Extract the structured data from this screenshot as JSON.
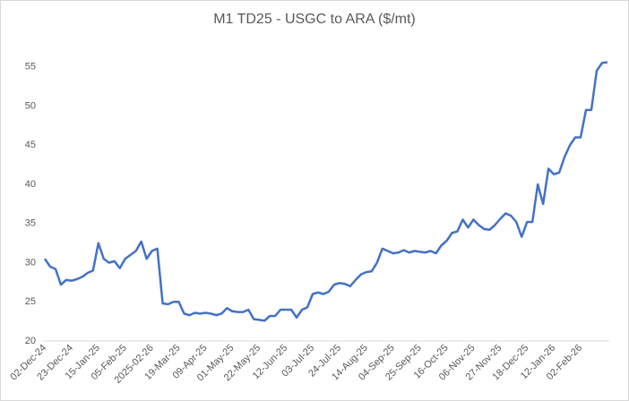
{
  "chart_data": {
    "type": "line",
    "title": "M1 TD25 - USGC to ARA ($/mt)",
    "categories": [
      "02-Dec-24",
      null,
      null,
      null,
      null,
      "23-Dec-24",
      null,
      null,
      null,
      null,
      "15-Jan-25",
      null,
      null,
      null,
      null,
      "05-Feb-25",
      null,
      null,
      null,
      null,
      "2025-02-26",
      null,
      null,
      null,
      null,
      "19-Mar-25",
      null,
      null,
      null,
      null,
      "09-Apr-25",
      null,
      null,
      null,
      null,
      "01-May-25",
      null,
      null,
      null,
      null,
      "22-May-25",
      null,
      null,
      null,
      null,
      "12-Jun-25",
      null,
      null,
      null,
      null,
      "03-Jul-25",
      null,
      null,
      null,
      null,
      "24-Jul-25",
      null,
      null,
      null,
      null,
      "14-Aug-25",
      null,
      null,
      null,
      null,
      "04-Sep-25",
      null,
      null,
      null,
      null,
      "25-Sep-25",
      null,
      null,
      null,
      null,
      "16-Oct-25",
      null,
      null,
      null,
      null,
      "06-Nov-25",
      null,
      null,
      null,
      null,
      "27-Nov-25",
      null,
      null,
      null,
      null,
      "18-Dec-25",
      null,
      null,
      null,
      null,
      "12-Jan-26",
      null,
      null,
      null,
      null,
      "02-Feb-26",
      null,
      null,
      null,
      null,
      null
    ],
    "series": [
      {
        "name": "M1 TD25",
        "color": "#4472c4",
        "values": [
          30.5,
          29.5,
          29.2,
          27.2,
          27.8,
          27.7,
          27.9,
          28.2,
          28.7,
          29.0,
          32.5,
          30.5,
          30.0,
          30.2,
          29.3,
          30.5,
          31.0,
          31.5,
          32.7,
          30.5,
          31.5,
          31.8,
          24.8,
          24.7,
          25.0,
          25.0,
          23.5,
          23.3,
          23.6,
          23.5,
          23.6,
          23.5,
          23.3,
          23.5,
          24.2,
          23.8,
          23.7,
          23.7,
          24.0,
          22.8,
          22.7,
          22.6,
          23.2,
          23.2,
          24.0,
          24.0,
          24.0,
          23.0,
          24.0,
          24.3,
          26.0,
          26.2,
          26.0,
          26.3,
          27.2,
          27.4,
          27.3,
          27.0,
          27.8,
          28.5,
          28.8,
          28.9,
          30.0,
          31.8,
          31.5,
          31.2,
          31.3,
          31.6,
          31.3,
          31.5,
          31.4,
          31.3,
          31.5,
          31.2,
          32.2,
          32.8,
          33.8,
          34.0,
          35.5,
          34.5,
          35.5,
          34.8,
          34.3,
          34.2,
          34.8,
          35.6,
          36.3,
          36.0,
          35.2,
          33.3,
          35.2,
          35.2,
          40.0,
          37.5,
          42.0,
          41.3,
          41.5,
          43.5,
          45.0,
          46.0,
          46.0,
          49.5,
          49.5,
          54.5,
          55.5,
          55.6
        ]
      }
    ],
    "ylim": [
      20,
      56
    ],
    "yticks": [
      20,
      25,
      30,
      35,
      40,
      45,
      50,
      55
    ],
    "grid": false
  }
}
